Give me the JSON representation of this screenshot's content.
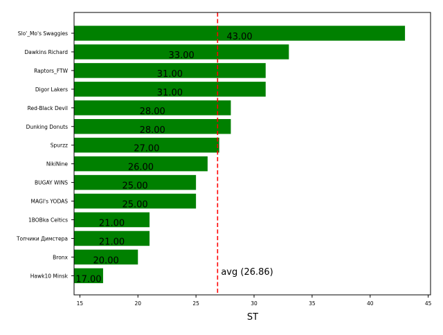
{
  "colors": {
    "bar": "#008000",
    "avg_line": "#ff0000",
    "axis": "#000000",
    "background": "#ffffff"
  },
  "chart_data": {
    "type": "bar",
    "orientation": "horizontal",
    "title": "",
    "xlabel": "ST",
    "ylabel": "",
    "xlim": [
      14.5,
      45.2
    ],
    "x_ticks": [
      15,
      20,
      25,
      30,
      35,
      40,
      45
    ],
    "grid": false,
    "categories": [
      "Slo'_Mo's Swaggies",
      "Dawkins Richard",
      "Raptors_FTW",
      "Digor Lakers",
      "Red-Black Devil",
      "Dunking Donuts",
      "Spurzz",
      "NikiNine",
      "BUGAY WINS",
      "MAGI's YODAS",
      "1BOBka Celtics",
      "Топчики Димстера",
      "Bronx",
      "Hawk10 Minsk"
    ],
    "values": [
      43,
      33,
      31,
      31,
      28,
      28,
      27,
      26,
      25,
      25,
      21,
      21,
      20,
      17
    ],
    "value_labels": [
      "43.00",
      "33.00",
      "31.00",
      "31.00",
      "28.00",
      "28.00",
      "27.00",
      "26.00",
      "25.00",
      "25.00",
      "21.00",
      "21.00",
      "20.00",
      "17.00"
    ],
    "reference_line": {
      "value": 26.86,
      "label": "avg (26.86)",
      "style": "dashed"
    }
  }
}
